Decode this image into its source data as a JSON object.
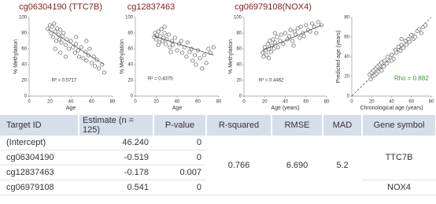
{
  "chart_data": [
    {
      "type": "scatter",
      "title": "cg06304190 (TTC7B)",
      "xlabel": "Age",
      "ylabel": "% Methylation",
      "annotation": "R² = 0.5717",
      "xlim": [
        0,
        80
      ],
      "ylim": [
        0,
        100
      ],
      "xticks": [
        0,
        20,
        40,
        60,
        80
      ],
      "yticks": [
        0,
        20,
        40,
        60,
        80,
        100
      ],
      "color": "#555555",
      "x": [
        18,
        20,
        21,
        22,
        23,
        24,
        25,
        26,
        27,
        28,
        29,
        30,
        31,
        32,
        33,
        35,
        36,
        38,
        40,
        42,
        44,
        45,
        47,
        48,
        50,
        52,
        54,
        55,
        57,
        58,
        60,
        62,
        63,
        65,
        67,
        70,
        72,
        25,
        30,
        35,
        45,
        55
      ],
      "values": [
        85,
        90,
        80,
        88,
        75,
        92,
        82,
        70,
        86,
        78,
        72,
        84,
        68,
        76,
        80,
        65,
        72,
        60,
        70,
        62,
        55,
        66,
        58,
        50,
        62,
        48,
        56,
        45,
        52,
        60,
        42,
        50,
        38,
        46,
        35,
        40,
        30,
        60,
        55,
        50,
        75,
        70
      ],
      "trendline": {
        "x": [
          18,
          72
        ],
        "y": [
          85,
          40
        ]
      }
    },
    {
      "type": "scatter",
      "title": "cg12837463",
      "xlabel": "Age",
      "ylabel": "% Methylation",
      "annotation": "R² = 0.4375",
      "xlim": [
        0,
        80
      ],
      "ylim": [
        0,
        100
      ],
      "xticks": [
        0,
        20,
        40,
        60,
        80
      ],
      "yticks": [
        0,
        20,
        40,
        60,
        80,
        100
      ],
      "color": "#555555",
      "x": [
        18,
        19,
        20,
        21,
        22,
        23,
        24,
        25,
        26,
        27,
        28,
        29,
        30,
        32,
        33,
        35,
        36,
        38,
        40,
        42,
        44,
        45,
        47,
        49,
        50,
        52,
        54,
        55,
        57,
        58,
        60,
        62,
        64,
        66,
        68,
        70,
        72,
        75,
        22,
        28,
        34
      ],
      "values": [
        75,
        80,
        72,
        78,
        82,
        68,
        76,
        85,
        70,
        74,
        80,
        66,
        72,
        78,
        62,
        70,
        65,
        74,
        58,
        66,
        70,
        55,
        62,
        50,
        68,
        56,
        60,
        45,
        52,
        40,
        58,
        48,
        35,
        52,
        42,
        60,
        55,
        62,
        65,
        88,
        56
      ],
      "trendline": {
        "x": [
          18,
          75
        ],
        "y": [
          76,
          52
        ]
      }
    },
    {
      "type": "scatter",
      "title": "cg06979108(NOX4)",
      "xlabel": "Age (years)",
      "ylabel": "% Methylation",
      "annotation": "R² = 0.4462",
      "xlim": [
        0,
        80
      ],
      "ylim": [
        0,
        100
      ],
      "xticks": [
        0,
        20,
        40,
        60,
        80
      ],
      "yticks": [
        0,
        20,
        40,
        60,
        80,
        100
      ],
      "color": "#555555",
      "x": [
        18,
        19,
        20,
        21,
        22,
        23,
        24,
        25,
        26,
        27,
        28,
        29,
        30,
        32,
        33,
        35,
        36,
        38,
        40,
        42,
        44,
        45,
        47,
        49,
        50,
        52,
        54,
        55,
        57,
        58,
        60,
        62,
        64,
        66,
        68,
        70,
        72,
        75,
        24,
        30,
        48
      ],
      "values": [
        55,
        50,
        62,
        58,
        52,
        66,
        60,
        70,
        56,
        64,
        72,
        60,
        68,
        75,
        62,
        70,
        78,
        66,
        80,
        72,
        76,
        84,
        70,
        82,
        78,
        86,
        74,
        88,
        80,
        76,
        90,
        84,
        82,
        92,
        88,
        80,
        94,
        90,
        48,
        80,
        64
      ],
      "trendline": {
        "x": [
          18,
          75
        ],
        "y": [
          58,
          90
        ]
      }
    },
    {
      "type": "scatter",
      "xlabel": "Chronological age (years)",
      "ylabel": "Predicted age (years)",
      "annotation": "Rho = 0.882",
      "annotation_color": "#3a9a3a",
      "xlim": [
        0,
        80
      ],
      "ylim": [
        0,
        80
      ],
      "xticks": [
        0,
        20,
        40,
        60,
        80
      ],
      "yticks": [
        0,
        20,
        40,
        60,
        80
      ],
      "color": "#555555",
      "identity_line": true,
      "x": [
        18,
        19,
        20,
        21,
        22,
        23,
        24,
        25,
        26,
        27,
        28,
        29,
        30,
        32,
        33,
        35,
        36,
        38,
        40,
        42,
        44,
        45,
        47,
        49,
        50,
        52,
        54,
        55,
        57,
        58,
        60,
        62,
        64,
        66,
        68,
        70,
        72,
        74,
        30,
        40,
        50
      ],
      "values": [
        22,
        17,
        24,
        20,
        26,
        21,
        28,
        23,
        30,
        25,
        32,
        27,
        34,
        30,
        36,
        33,
        40,
        36,
        42,
        38,
        47,
        44,
        50,
        46,
        52,
        49,
        56,
        52,
        58,
        55,
        62,
        58,
        60,
        66,
        68,
        64,
        70,
        72,
        26,
        36,
        58
      ]
    }
  ],
  "table": {
    "header": [
      "Target ID",
      "Estimate (n = 125)",
      "P-value",
      "R-squared",
      "RMSE",
      "MAD",
      "Gene symbol"
    ],
    "rows": [
      [
        "(Intercept)",
        "46.240",
        "0"
      ],
      [
        "cg06304190",
        "-0.519",
        "0"
      ],
      [
        "cg12837463",
        "-0.178",
        "0.007"
      ],
      [
        "cg06979108",
        "0.541",
        "0"
      ]
    ],
    "r_squared": "0.766",
    "rmse": "6.690",
    "mad": "5.2",
    "gene_symbols": [
      "TTC7B",
      "NOX4"
    ]
  }
}
